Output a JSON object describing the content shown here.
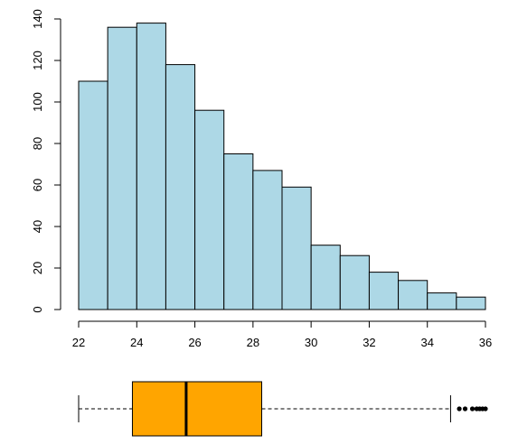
{
  "chart_data": [
    {
      "type": "bar",
      "subtype": "histogram",
      "title": "",
      "xlabel": "",
      "ylabel": "",
      "bins": [
        {
          "x0": 22,
          "x1": 23,
          "count": 110
        },
        {
          "x0": 23,
          "x1": 24,
          "count": 136
        },
        {
          "x0": 24,
          "x1": 25,
          "count": 138
        },
        {
          "x0": 25,
          "x1": 26,
          "count": 118
        },
        {
          "x0": 26,
          "x1": 27,
          "count": 96
        },
        {
          "x0": 27,
          "x1": 28,
          "count": 75
        },
        {
          "x0": 28,
          "x1": 29,
          "count": 67
        },
        {
          "x0": 29,
          "x1": 30,
          "count": 59
        },
        {
          "x0": 30,
          "x1": 31,
          "count": 31
        },
        {
          "x0": 31,
          "x1": 32,
          "count": 26
        },
        {
          "x0": 32,
          "x1": 33,
          "count": 18
        },
        {
          "x0": 33,
          "x1": 34,
          "count": 14
        },
        {
          "x0": 34,
          "x1": 35,
          "count": 8
        },
        {
          "x0": 35,
          "x1": 36,
          "count": 6
        }
      ],
      "xlim": [
        22,
        36
      ],
      "ylim": [
        0,
        140
      ],
      "xticks": [
        "22",
        "24",
        "26",
        "28",
        "30",
        "32",
        "34",
        "36"
      ],
      "yticks": [
        "0",
        "20",
        "40",
        "60",
        "80",
        "100",
        "120",
        "140"
      ],
      "grid": false,
      "colors": {
        "bar_fill": "#add8e6",
        "bar_stroke": "#000000"
      }
    },
    {
      "type": "boxplot",
      "orientation": "horizontal",
      "min_whisker": 22.0,
      "q1": 23.85,
      "median": 25.7,
      "q3": 28.3,
      "max_whisker": 34.8,
      "outliers": [
        35.1,
        35.3,
        35.55,
        35.7,
        35.8,
        35.9,
        36.0
      ],
      "colors": {
        "box_fill": "#ffa500",
        "stroke": "#000000"
      }
    }
  ]
}
